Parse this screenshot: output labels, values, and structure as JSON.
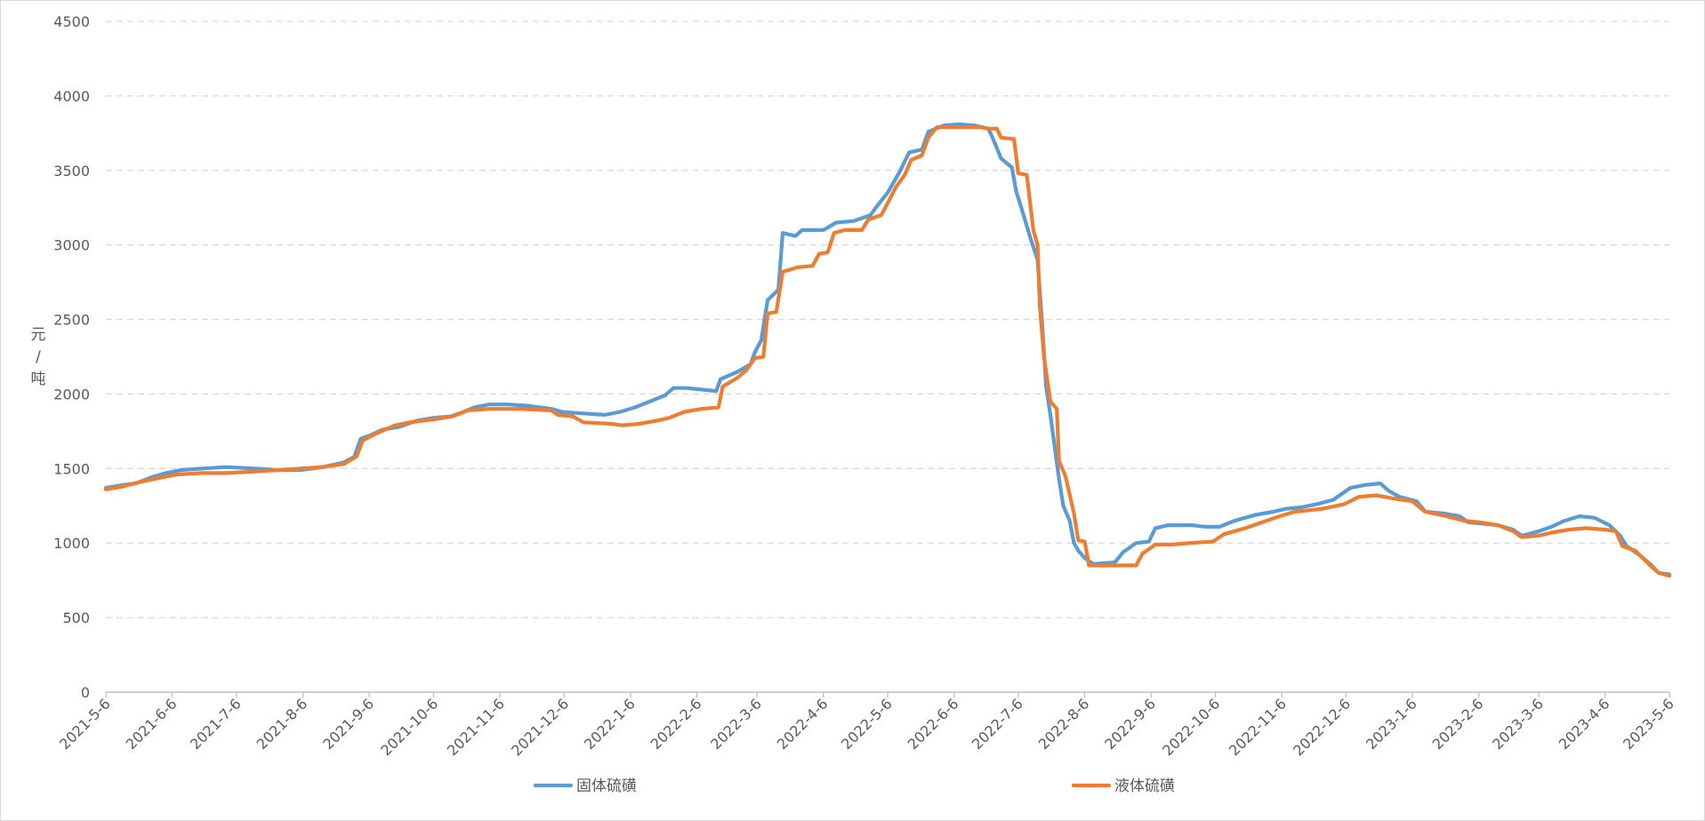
{
  "chart_data": {
    "type": "line",
    "title": "",
    "xlabel": "",
    "ylabel": "元/吨",
    "x_tick_labels": [
      "2021-5-6",
      "2021-6-6",
      "2021-7-6",
      "2021-8-6",
      "2021-9-6",
      "2021-10-6",
      "2021-11-6",
      "2021-12-6",
      "2022-1-6",
      "2022-2-6",
      "2022-3-6",
      "2022-4-6",
      "2022-5-6",
      "2022-6-6",
      "2022-7-6",
      "2022-8-6",
      "2022-9-6",
      "2022-10-6",
      "2022-11-6",
      "2022-12-6",
      "2023-1-6",
      "2023-2-6",
      "2023-3-6",
      "2023-4-6",
      "2023-5-6"
    ],
    "y_ticks": [
      0,
      500,
      1000,
      1500,
      2000,
      2500,
      3000,
      3500,
      4000,
      4500
    ],
    "ylim": [
      0,
      4500
    ],
    "xlim": [
      "2021-5-6",
      "2023-5-6"
    ],
    "grid": "horizontal dashed",
    "legend_position": "bottom",
    "colors": {
      "solid": "#5b9bd5",
      "liquid": "#ed7d31",
      "grid": "#d9d9d9",
      "axis": "#bfbfbf",
      "text": "#595959"
    },
    "series": [
      {
        "name": "固体硫磺",
        "color": "#5b9bd5",
        "points": [
          [
            "2021-5-6",
            1370
          ],
          [
            "2021-5-14",
            1390
          ],
          [
            "2021-5-20",
            1400
          ],
          [
            "2021-5-27",
            1440
          ],
          [
            "2021-6-3",
            1470
          ],
          [
            "2021-6-10",
            1490
          ],
          [
            "2021-6-20",
            1500
          ],
          [
            "2021-7-1",
            1510
          ],
          [
            "2021-7-15",
            1500
          ],
          [
            "2021-7-25",
            1490
          ],
          [
            "2021-8-5",
            1490
          ],
          [
            "2021-8-15",
            1510
          ],
          [
            "2021-8-25",
            1540
          ],
          [
            "2021-8-30",
            1580
          ],
          [
            "2021-9-2",
            1700
          ],
          [
            "2021-9-6",
            1720
          ],
          [
            "2021-9-12",
            1760
          ],
          [
            "2021-9-20",
            1780
          ],
          [
            "2021-9-28",
            1820
          ],
          [
            "2021-10-6",
            1840
          ],
          [
            "2021-10-14",
            1850
          ],
          [
            "2021-10-20",
            1880
          ],
          [
            "2021-10-25",
            1910
          ],
          [
            "2021-11-1",
            1930
          ],
          [
            "2021-11-10",
            1930
          ],
          [
            "2021-11-20",
            1920
          ],
          [
            "2021-11-30",
            1900
          ],
          [
            "2021-12-5",
            1880
          ],
          [
            "2021-12-15",
            1870
          ],
          [
            "2021-12-25",
            1860
          ],
          [
            "2022-1-1",
            1880
          ],
          [
            "2022-1-8",
            1910
          ],
          [
            "2022-1-15",
            1950
          ],
          [
            "2022-1-22",
            1990
          ],
          [
            "2022-1-26",
            2040
          ],
          [
            "2022-2-1",
            2040
          ],
          [
            "2022-2-8",
            2030
          ],
          [
            "2022-2-15",
            2020
          ],
          [
            "2022-2-17",
            2100
          ],
          [
            "2022-2-25",
            2150
          ],
          [
            "2022-3-3",
            2200
          ],
          [
            "2022-3-5",
            2280
          ],
          [
            "2022-3-8",
            2360
          ],
          [
            "2022-3-11",
            2630
          ],
          [
            "2022-3-16",
            2700
          ],
          [
            "2022-3-18",
            3080
          ],
          [
            "2022-3-24",
            3060
          ],
          [
            "2022-3-27",
            3100
          ],
          [
            "2022-4-6",
            3100
          ],
          [
            "2022-4-12",
            3150
          ],
          [
            "2022-4-20",
            3160
          ],
          [
            "2022-4-28",
            3200
          ],
          [
            "2022-5-1",
            3260
          ],
          [
            "2022-5-6",
            3350
          ],
          [
            "2022-5-12",
            3500
          ],
          [
            "2022-5-16",
            3620
          ],
          [
            "2022-5-22",
            3640
          ],
          [
            "2022-5-25",
            3760
          ],
          [
            "2022-6-1",
            3800
          ],
          [
            "2022-6-8",
            3810
          ],
          [
            "2022-6-16",
            3800
          ],
          [
            "2022-6-22",
            3780
          ],
          [
            "2022-6-24",
            3720
          ],
          [
            "2022-6-28",
            3580
          ],
          [
            "2022-7-3",
            3520
          ],
          [
            "2022-7-5",
            3360
          ],
          [
            "2022-7-7",
            3270
          ],
          [
            "2022-7-12",
            3030
          ],
          [
            "2022-7-15",
            2900
          ],
          [
            "2022-7-17",
            2500
          ],
          [
            "2022-7-19",
            2050
          ],
          [
            "2022-7-21",
            1860
          ],
          [
            "2022-7-25",
            1430
          ],
          [
            "2022-7-27",
            1250
          ],
          [
            "2022-7-30",
            1150
          ],
          [
            "2022-8-1",
            1000
          ],
          [
            "2022-8-3",
            950
          ],
          [
            "2022-8-6",
            900
          ],
          [
            "2022-8-10",
            860
          ],
          [
            "2022-8-20",
            870
          ],
          [
            "2022-8-24",
            940
          ],
          [
            "2022-8-30",
            1000
          ],
          [
            "2022-9-5",
            1010
          ],
          [
            "2022-9-8",
            1100
          ],
          [
            "2022-9-14",
            1120
          ],
          [
            "2022-9-25",
            1120
          ],
          [
            "2022-10-1",
            1110
          ],
          [
            "2022-10-8",
            1110
          ],
          [
            "2022-10-15",
            1150
          ],
          [
            "2022-10-25",
            1190
          ],
          [
            "2022-11-2",
            1210
          ],
          [
            "2022-11-8",
            1230
          ],
          [
            "2022-11-15",
            1240
          ],
          [
            "2022-11-22",
            1260
          ],
          [
            "2022-11-30",
            1290
          ],
          [
            "2022-12-8",
            1370
          ],
          [
            "2022-12-15",
            1390
          ],
          [
            "2022-12-22",
            1400
          ],
          [
            "2022-12-26",
            1350
          ],
          [
            "2022-12-31",
            1310
          ],
          [
            "2023-1-8",
            1280
          ],
          [
            "2023-1-12",
            1210
          ],
          [
            "2023-1-20",
            1200
          ],
          [
            "2023-1-28",
            1180
          ],
          [
            "2023-2-1",
            1140
          ],
          [
            "2023-2-8",
            1130
          ],
          [
            "2023-2-15",
            1120
          ],
          [
            "2023-2-22",
            1090
          ],
          [
            "2023-2-26",
            1050
          ],
          [
            "2023-3-1",
            1060
          ],
          [
            "2023-3-6",
            1080
          ],
          [
            "2023-3-12",
            1110
          ],
          [
            "2023-3-18",
            1150
          ],
          [
            "2023-3-25",
            1180
          ],
          [
            "2023-4-1",
            1170
          ],
          [
            "2023-4-8",
            1120
          ],
          [
            "2023-4-13",
            1050
          ],
          [
            "2023-4-16",
            980
          ],
          [
            "2023-4-22",
            920
          ],
          [
            "2023-4-27",
            860
          ],
          [
            "2023-5-1",
            800
          ],
          [
            "2023-5-6",
            790
          ]
        ]
      },
      {
        "name": "液体硫磺",
        "color": "#ed7d31",
        "points": [
          [
            "2021-5-6",
            1360
          ],
          [
            "2021-5-14",
            1380
          ],
          [
            "2021-5-22",
            1410
          ],
          [
            "2021-6-1",
            1440
          ],
          [
            "2021-6-8",
            1460
          ],
          [
            "2021-6-20",
            1470
          ],
          [
            "2021-7-1",
            1470
          ],
          [
            "2021-7-15",
            1480
          ],
          [
            "2021-7-25",
            1490
          ],
          [
            "2021-8-5",
            1500
          ],
          [
            "2021-8-15",
            1510
          ],
          [
            "2021-8-25",
            1530
          ],
          [
            "2021-8-31",
            1580
          ],
          [
            "2021-9-3",
            1690
          ],
          [
            "2021-9-10",
            1740
          ],
          [
            "2021-9-18",
            1790
          ],
          [
            "2021-9-25",
            1810
          ],
          [
            "2021-10-6",
            1830
          ],
          [
            "2021-10-15",
            1850
          ],
          [
            "2021-10-22",
            1890
          ],
          [
            "2021-11-1",
            1900
          ],
          [
            "2021-11-15",
            1900
          ],
          [
            "2021-11-30",
            1890
          ],
          [
            "2021-12-3",
            1860
          ],
          [
            "2021-12-10",
            1850
          ],
          [
            "2021-12-15",
            1810
          ],
          [
            "2021-12-28",
            1800
          ],
          [
            "2022-1-2",
            1790
          ],
          [
            "2022-1-10",
            1800
          ],
          [
            "2022-1-18",
            1820
          ],
          [
            "2022-1-24",
            1840
          ],
          [
            "2022-1-31",
            1880
          ],
          [
            "2022-2-8",
            1900
          ],
          [
            "2022-2-16",
            1910
          ],
          [
            "2022-2-18",
            2050
          ],
          [
            "2022-2-25",
            2110
          ],
          [
            "2022-3-1",
            2160
          ],
          [
            "2022-3-5",
            2240
          ],
          [
            "2022-3-9",
            2250
          ],
          [
            "2022-3-11",
            2540
          ],
          [
            "2022-3-15",
            2550
          ],
          [
            "2022-3-18",
            2820
          ],
          [
            "2022-3-25",
            2850
          ],
          [
            "2022-4-1",
            2860
          ],
          [
            "2022-4-4",
            2940
          ],
          [
            "2022-4-8",
            2950
          ],
          [
            "2022-4-11",
            3080
          ],
          [
            "2022-4-16",
            3100
          ],
          [
            "2022-4-24",
            3100
          ],
          [
            "2022-4-27",
            3170
          ],
          [
            "2022-5-3",
            3200
          ],
          [
            "2022-5-6",
            3280
          ],
          [
            "2022-5-10",
            3390
          ],
          [
            "2022-5-14",
            3470
          ],
          [
            "2022-5-17",
            3570
          ],
          [
            "2022-5-22",
            3600
          ],
          [
            "2022-5-25",
            3720
          ],
          [
            "2022-5-29",
            3790
          ],
          [
            "2022-6-8",
            3790
          ],
          [
            "2022-6-18",
            3790
          ],
          [
            "2022-6-22",
            3780
          ],
          [
            "2022-6-26",
            3780
          ],
          [
            "2022-6-28",
            3720
          ],
          [
            "2022-7-4",
            3710
          ],
          [
            "2022-7-6",
            3480
          ],
          [
            "2022-7-10",
            3470
          ],
          [
            "2022-7-13",
            3100
          ],
          [
            "2022-7-15",
            3000
          ],
          [
            "2022-7-16",
            2600
          ],
          [
            "2022-7-18",
            2250
          ],
          [
            "2022-7-21",
            1950
          ],
          [
            "2022-7-24",
            1900
          ],
          [
            "2022-7-25",
            1550
          ],
          [
            "2022-7-28",
            1450
          ],
          [
            "2022-8-1",
            1200
          ],
          [
            "2022-8-3",
            1020
          ],
          [
            "2022-8-6",
            1010
          ],
          [
            "2022-8-8",
            850
          ],
          [
            "2022-8-20",
            850
          ],
          [
            "2022-8-30",
            850
          ],
          [
            "2022-9-2",
            930
          ],
          [
            "2022-9-8",
            990
          ],
          [
            "2022-9-16",
            990
          ],
          [
            "2022-9-24",
            1000
          ],
          [
            "2022-10-5",
            1010
          ],
          [
            "2022-10-10",
            1060
          ],
          [
            "2022-10-20",
            1100
          ],
          [
            "2022-10-28",
            1140
          ],
          [
            "2022-11-5",
            1180
          ],
          [
            "2022-11-12",
            1210
          ],
          [
            "2022-11-25",
            1230
          ],
          [
            "2022-12-5",
            1260
          ],
          [
            "2022-12-12",
            1310
          ],
          [
            "2022-12-20",
            1320
          ],
          [
            "2022-12-28",
            1300
          ],
          [
            "2023-1-6",
            1280
          ],
          [
            "2023-1-12",
            1210
          ],
          [
            "2023-1-22",
            1180
          ],
          [
            "2023-1-30",
            1150
          ],
          [
            "2023-2-6",
            1140
          ],
          [
            "2023-2-15",
            1120
          ],
          [
            "2023-2-22",
            1080
          ],
          [
            "2023-2-26",
            1040
          ],
          [
            "2023-3-6",
            1050
          ],
          [
            "2023-3-12",
            1070
          ],
          [
            "2023-3-20",
            1090
          ],
          [
            "2023-3-28",
            1100
          ],
          [
            "2023-4-6",
            1090
          ],
          [
            "2023-4-11",
            1080
          ],
          [
            "2023-4-14",
            980
          ],
          [
            "2023-4-20",
            950
          ],
          [
            "2023-4-27",
            850
          ],
          [
            "2023-5-1",
            800
          ],
          [
            "2023-5-6",
            780
          ]
        ]
      }
    ]
  }
}
